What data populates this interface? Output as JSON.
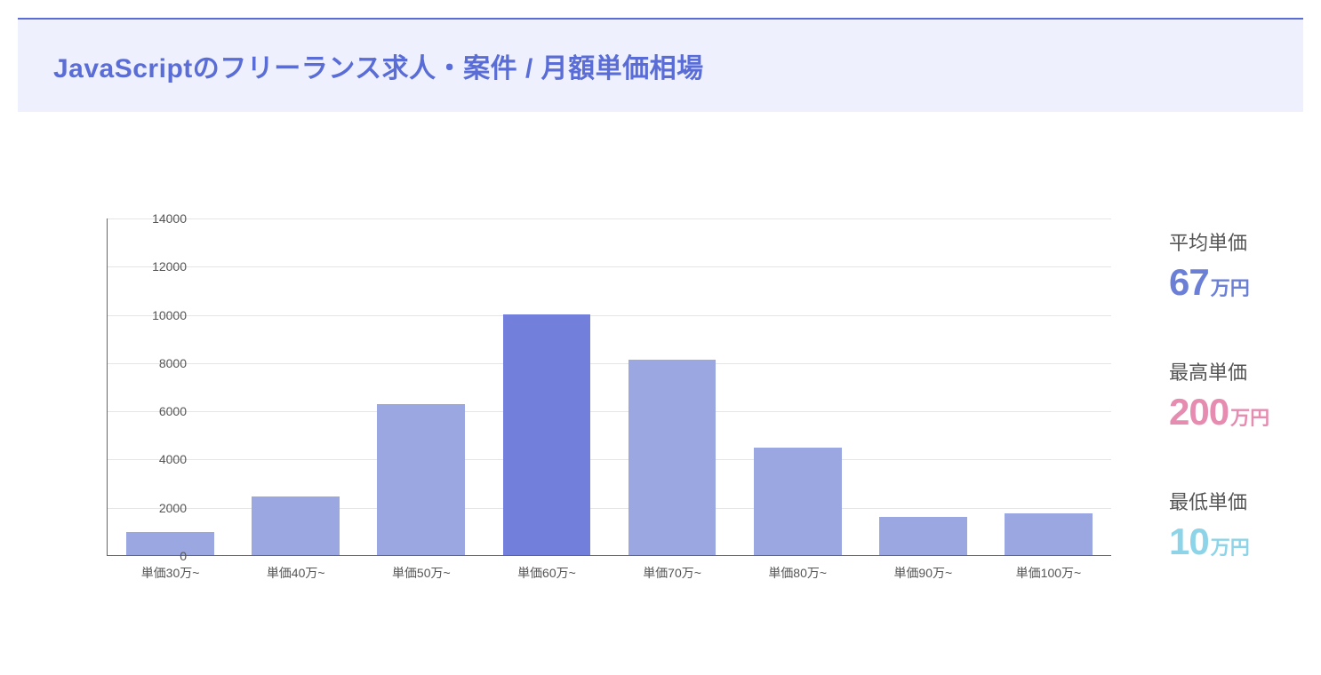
{
  "header": {
    "title": "JavaScriptのフリーランス求人・案件 / 月額単価相場",
    "title_color": "#5a6dd6",
    "title_fontsize": 30,
    "band_bg": "#eef1fd",
    "band_border_top": "#5a6dd6"
  },
  "chart": {
    "type": "bar",
    "ylim": [
      0,
      14000
    ],
    "ytick_step": 2000,
    "yticks": [
      0,
      2000,
      4000,
      6000,
      8000,
      10000,
      12000,
      14000
    ],
    "categories": [
      "単価30万~",
      "単価40万~",
      "単価50万~",
      "単価60万~",
      "単価70万~",
      "単価80万~",
      "単価90万~",
      "単価100万~"
    ],
    "values": [
      950,
      2450,
      6250,
      10000,
      8100,
      4450,
      1600,
      1750
    ],
    "bar_colors": [
      "#9ba7e0",
      "#9ba7e0",
      "#9ba7e0",
      "#7280dc",
      "#9ba7e0",
      "#9ba7e0",
      "#9ba7e0",
      "#9ba7e0"
    ],
    "grid_color": "#e5e5e5",
    "axis_color": "#666666",
    "background_color": "#ffffff",
    "tick_label_fontsize": 14,
    "tick_label_color": "#555555",
    "bar_width": 0.7
  },
  "stats": {
    "items": [
      {
        "label": "平均単価",
        "value": "67",
        "unit": "万円",
        "color": "#6b7fd7"
      },
      {
        "label": "最高単価",
        "value": "200",
        "unit": "万円",
        "color": "#e58cb0"
      },
      {
        "label": "最低単価",
        "value": "10",
        "unit": "万円",
        "color": "#8dd4e8"
      }
    ],
    "label_fontsize": 22,
    "label_color": "#555555",
    "value_fontsize": 42,
    "unit_fontsize": 22
  }
}
